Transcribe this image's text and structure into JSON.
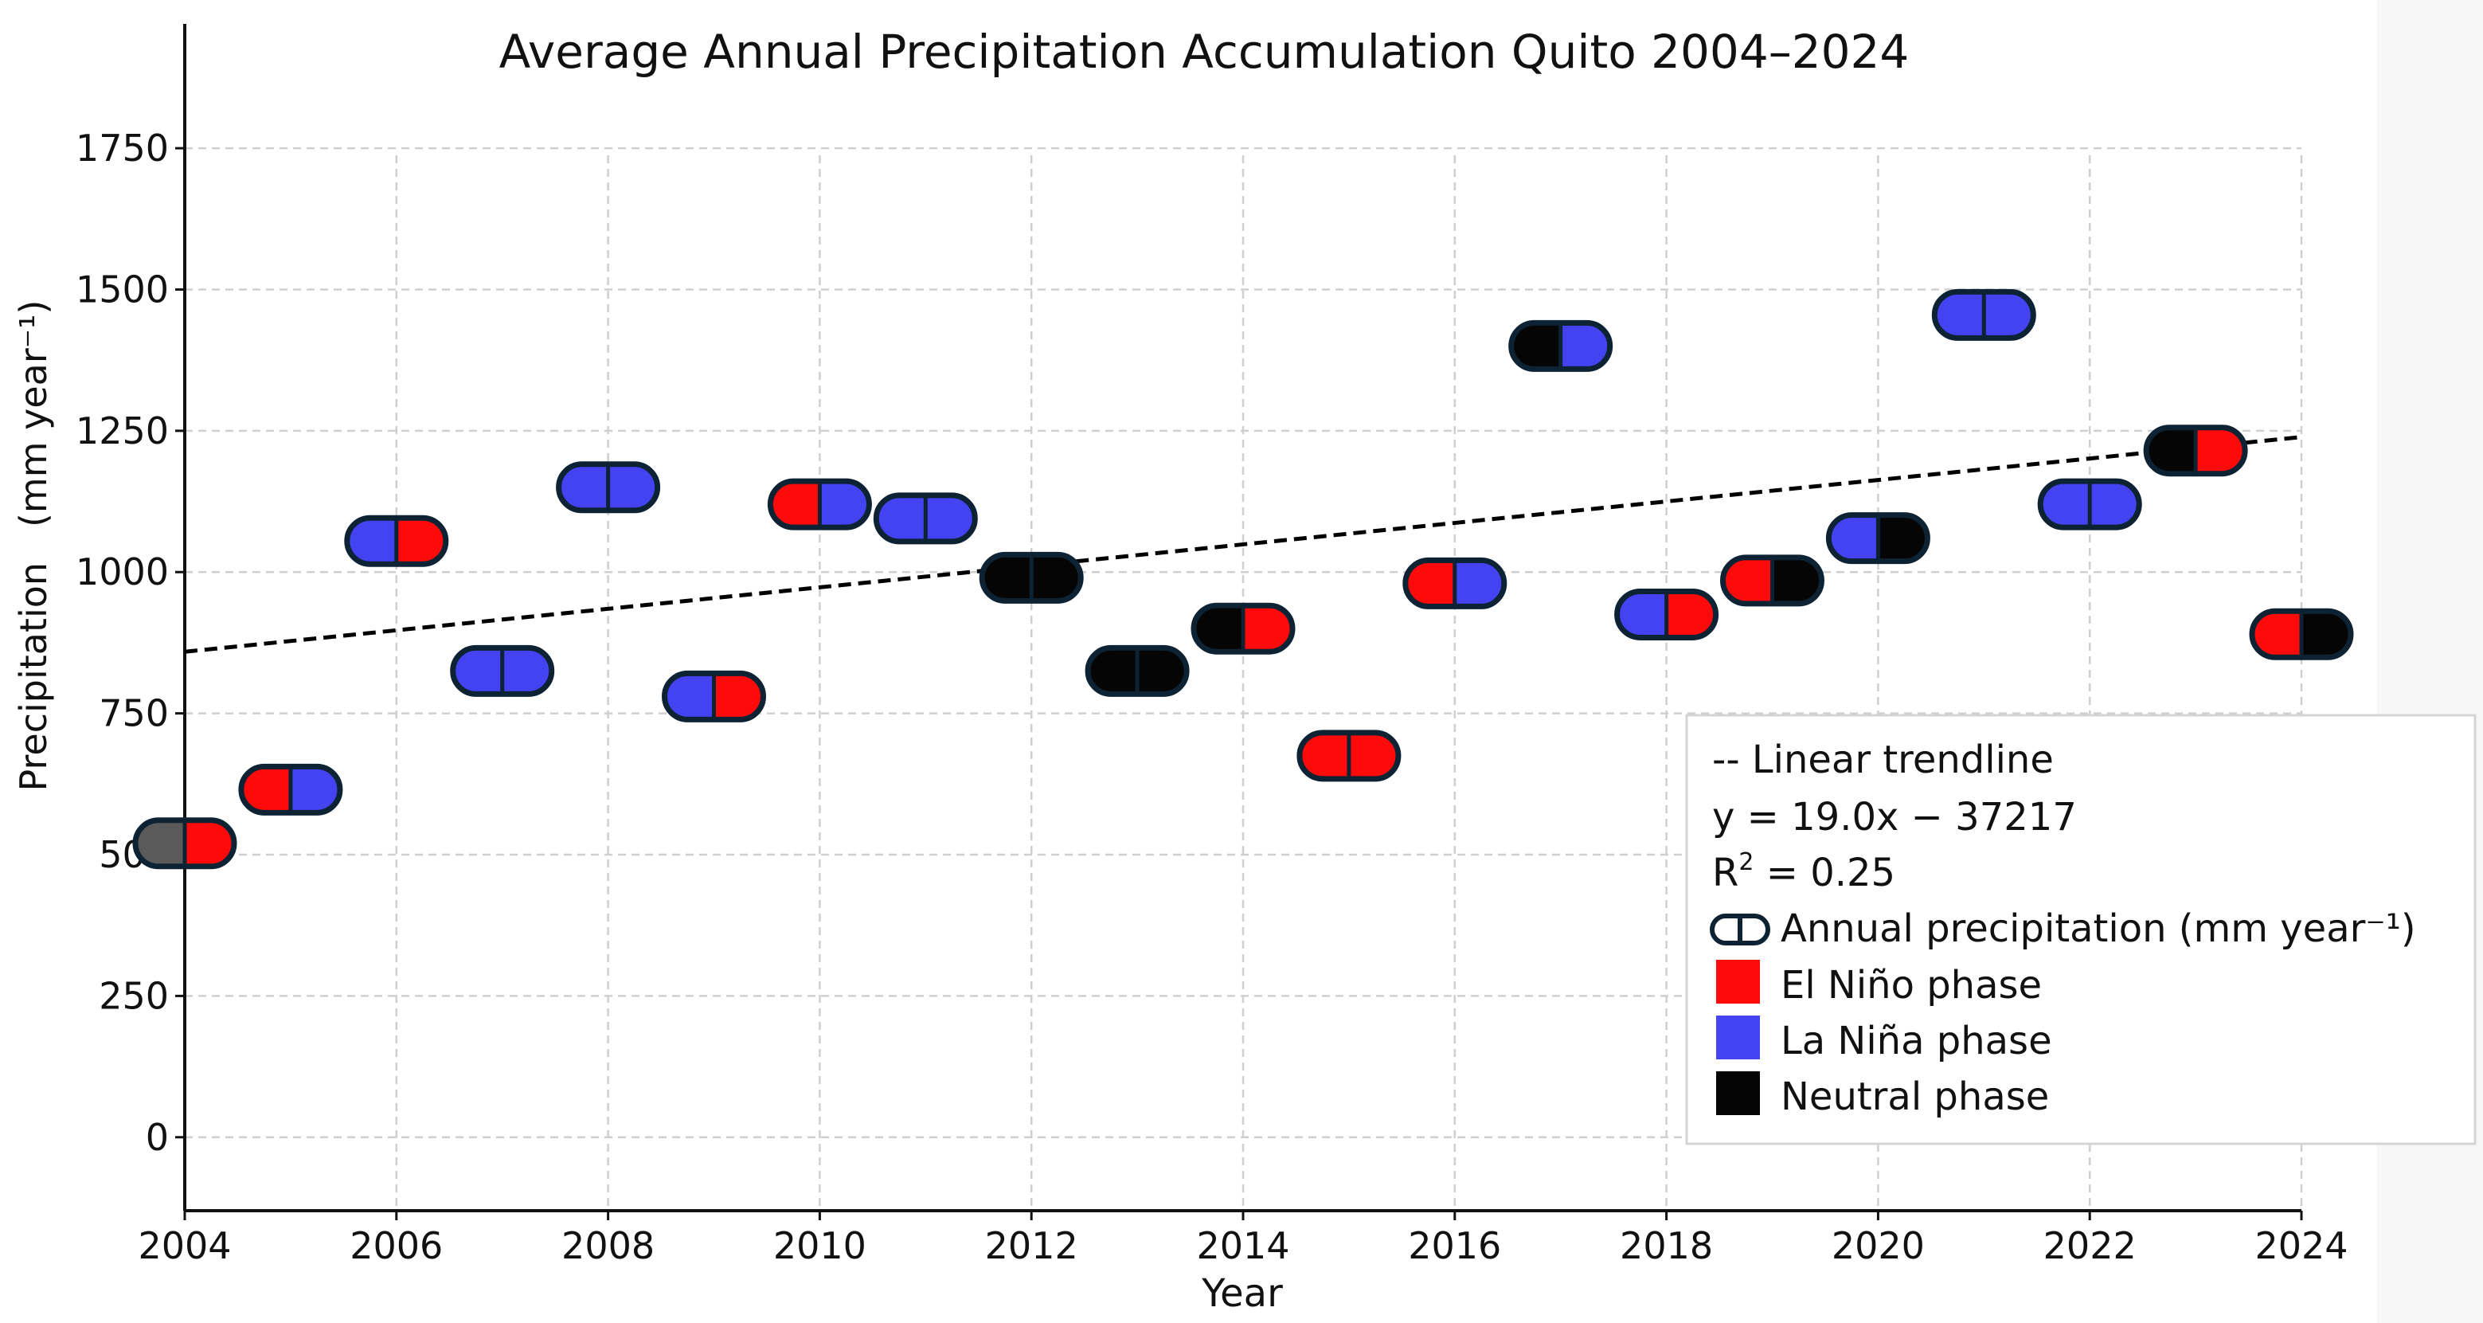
{
  "chart_data": {
    "type": "scatter",
    "title": "Average Annual Precipitation Accumulation Quito 2004–2024",
    "xlabel": "Year",
    "ylabel": "Precipitation   (mm year⁻¹)",
    "xlim": [
      2004,
      2024
    ],
    "ylim": [
      -130,
      1970
    ],
    "x_ticks": [
      2004,
      2006,
      2008,
      2010,
      2012,
      2014,
      2016,
      2018,
      2020,
      2022,
      2024
    ],
    "y_ticks": [
      0,
      250,
      500,
      750,
      1000,
      1250,
      1500,
      1750
    ],
    "grid": true,
    "trendline": {
      "slope": 19.0,
      "intercept": -37217,
      "r2": 0.25,
      "x_range": [
        2004,
        2024
      ]
    },
    "points": [
      {
        "year": 2004,
        "value": 520,
        "left_phase": "gray",
        "right_phase": "el_nino"
      },
      {
        "year": 2005,
        "value": 615,
        "left_phase": "el_nino",
        "right_phase": "la_nina"
      },
      {
        "year": 2006,
        "value": 1055,
        "left_phase": "la_nina",
        "right_phase": "el_nino"
      },
      {
        "year": 2007,
        "value": 825,
        "left_phase": "la_nina",
        "right_phase": "la_nina"
      },
      {
        "year": 2008,
        "value": 1150,
        "left_phase": "la_nina",
        "right_phase": "la_nina"
      },
      {
        "year": 2009,
        "value": 780,
        "left_phase": "la_nina",
        "right_phase": "el_nino"
      },
      {
        "year": 2010,
        "value": 1120,
        "left_phase": "el_nino",
        "right_phase": "la_nina"
      },
      {
        "year": 2011,
        "value": 1095,
        "left_phase": "la_nina",
        "right_phase": "la_nina"
      },
      {
        "year": 2012,
        "value": 990,
        "left_phase": "neutral",
        "right_phase": "neutral"
      },
      {
        "year": 2013,
        "value": 825,
        "left_phase": "neutral",
        "right_phase": "neutral"
      },
      {
        "year": 2014,
        "value": 900,
        "left_phase": "neutral",
        "right_phase": "el_nino"
      },
      {
        "year": 2015,
        "value": 675,
        "left_phase": "el_nino",
        "right_phase": "el_nino"
      },
      {
        "year": 2016,
        "value": 980,
        "left_phase": "el_nino",
        "right_phase": "la_nina"
      },
      {
        "year": 2017,
        "value": 1400,
        "left_phase": "neutral",
        "right_phase": "la_nina"
      },
      {
        "year": 2018,
        "value": 925,
        "left_phase": "la_nina",
        "right_phase": "el_nino"
      },
      {
        "year": 2019,
        "value": 985,
        "left_phase": "el_nino",
        "right_phase": "neutral"
      },
      {
        "year": 2020,
        "value": 1060,
        "left_phase": "la_nina",
        "right_phase": "neutral"
      },
      {
        "year": 2021,
        "value": 1455,
        "left_phase": "la_nina",
        "right_phase": "la_nina"
      },
      {
        "year": 2022,
        "value": 1120,
        "left_phase": "la_nina",
        "right_phase": "la_nina"
      },
      {
        "year": 2023,
        "value": 1215,
        "left_phase": "neutral",
        "right_phase": "el_nino"
      },
      {
        "year": 2024,
        "value": 890,
        "left_phase": "el_nino",
        "right_phase": "neutral"
      }
    ],
    "legend": {
      "placement": "bottom-right",
      "trend_label": "-- Linear trendline",
      "equation": "y = 19.0x − 37217",
      "r2_prefix": "R",
      "r2_sup": "2",
      "r2_value": " = 0.25",
      "series_label": "Annual precipitation (mm year⁻¹)",
      "phases": [
        {
          "key": "el_nino",
          "label": "El Niño phase"
        },
        {
          "key": "la_nina",
          "label": "La Niña phase"
        },
        {
          "key": "neutral",
          "label": "Neutral phase"
        }
      ]
    },
    "colors": {
      "el_nino": "#ff0a0a",
      "la_nina": "#4343f2",
      "neutral": "#050505",
      "gray": "#5a5a5a",
      "outline": "#0d2233",
      "grid": "#cfcfcf",
      "trend": "#000000"
    }
  }
}
